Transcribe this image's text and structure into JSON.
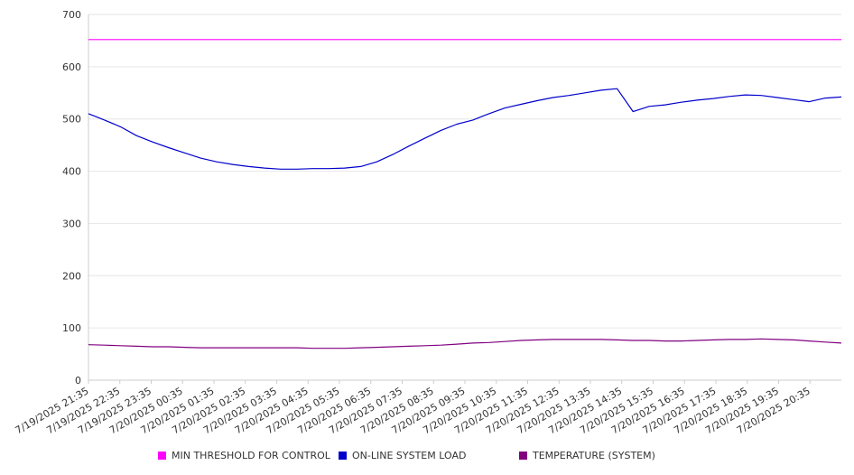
{
  "chart_data": {
    "type": "line",
    "title": "",
    "xlabel": "",
    "ylabel": "",
    "ylim": [
      0,
      700
    ],
    "yticks": [
      0,
      100,
      200,
      300,
      400,
      500,
      600,
      700
    ],
    "grid": true,
    "legend_position": "bottom",
    "x_labels": [
      "7/19/2025 21:35",
      "7/19/2025 22:35",
      "7/19/2025 23:35",
      "7/20/2025 00:35",
      "7/20/2025 01:35",
      "7/20/2025 02:35",
      "7/20/2025 03:35",
      "7/20/2025 04:35",
      "7/20/2025 05:35",
      "7/20/2025 06:35",
      "7/20/2025 07:35",
      "7/20/2025 08:35",
      "7/20/2025 09:35",
      "7/20/2025 10:35",
      "7/20/2025 11:35",
      "7/20/2025 12:35",
      "7/20/2025 13:35",
      "7/20/2025 14:35",
      "7/20/2025 15:35",
      "7/20/2025 16:35",
      "7/20/2025 17:35",
      "7/20/2025 18:35",
      "7/20/2025 19:35",
      "7/20/2025 20:35"
    ],
    "x": [
      "21:35",
      "22:05",
      "22:35",
      "23:05",
      "23:35",
      "00:05",
      "00:35",
      "01:05",
      "01:35",
      "02:05",
      "02:35",
      "03:05",
      "03:35",
      "04:05",
      "04:35",
      "05:05",
      "05:35",
      "06:05",
      "06:35",
      "07:05",
      "07:35",
      "08:05",
      "08:35",
      "09:05",
      "09:35",
      "10:05",
      "10:35",
      "11:05",
      "11:35",
      "12:05",
      "12:35",
      "13:05",
      "13:35",
      "14:05",
      "14:35",
      "15:05",
      "15:35",
      "16:05",
      "16:35",
      "17:05",
      "17:35",
      "18:05",
      "18:35",
      "19:05",
      "19:35",
      "20:05",
      "20:35",
      "21:05"
    ],
    "series": [
      {
        "name": "MIN THRESHOLD FOR CONTROL",
        "color": "#ff00ff",
        "values": [
          652,
          652,
          652,
          652,
          652,
          652,
          652,
          652,
          652,
          652,
          652,
          652,
          652,
          652,
          652,
          652,
          652,
          652,
          652,
          652,
          652,
          652,
          652,
          652,
          652,
          652,
          652,
          652,
          652,
          652,
          652,
          652,
          652,
          652,
          652,
          652,
          652,
          652,
          652,
          652,
          652,
          652,
          652,
          652,
          652,
          652,
          652,
          652
        ]
      },
      {
        "name": "ON-LINE SYSTEM LOAD",
        "color": "#0000cc",
        "values": [
          510,
          498,
          485,
          468,
          456,
          445,
          435,
          425,
          418,
          413,
          409,
          406,
          404,
          404,
          405,
          405,
          406,
          409,
          418,
          432,
          448,
          463,
          478,
          490,
          498,
          510,
          521,
          528,
          535,
          541,
          545,
          550,
          555,
          558,
          514,
          524,
          527,
          532,
          536,
          539,
          543,
          546,
          545,
          541,
          537,
          533,
          540,
          542
        ]
      },
      {
        "name": "TEMPERATURE (SYSTEM)",
        "color": "#800080",
        "values": [
          68,
          67,
          66,
          65,
          64,
          64,
          63,
          62,
          62,
          62,
          62,
          62,
          62,
          62,
          61,
          61,
          61,
          62,
          63,
          64,
          65,
          66,
          67,
          69,
          71,
          72,
          74,
          76,
          77,
          78,
          78,
          78,
          78,
          77,
          76,
          76,
          75,
          75,
          76,
          77,
          78,
          78,
          79,
          78,
          77,
          75,
          73,
          71
        ]
      }
    ]
  }
}
